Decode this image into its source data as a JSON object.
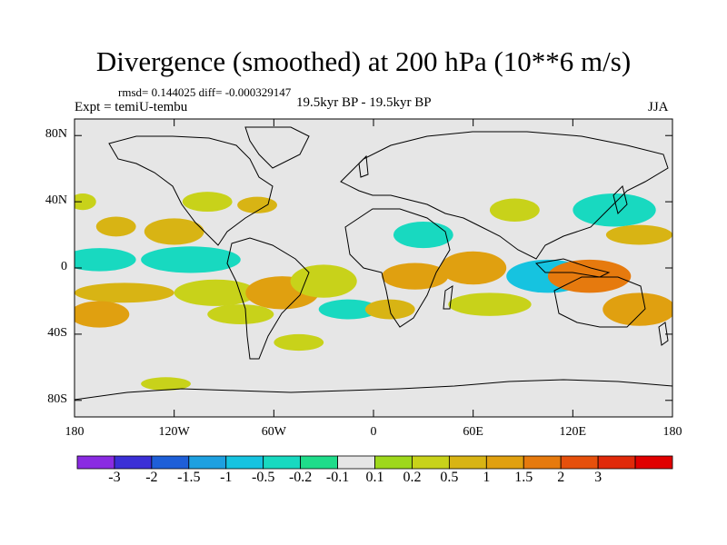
{
  "title": "Divergence (smoothed) at 200 hPa (10**6 m/s)",
  "stats": "rmsd= 0.144025 diff= -0.000329147",
  "experiment": "Expt = temiU-tembu",
  "period": "19.5kyr BP - 19.5kyr BP",
  "season": "JJA",
  "map": {
    "lon_range": [
      -180,
      180
    ],
    "lat_range": [
      -90,
      90
    ],
    "y_ticks": [
      {
        "label": "80N",
        "lat": 80
      },
      {
        "label": "40N",
        "lat": 40
      },
      {
        "label": "0",
        "lat": 0
      },
      {
        "label": "40S",
        "lat": -40
      },
      {
        "label": "80S",
        "lat": -80
      }
    ],
    "x_ticks": [
      {
        "label": "180",
        "lon": -180
      },
      {
        "label": "120W",
        "lon": -120
      },
      {
        "label": "60W",
        "lon": -60
      },
      {
        "label": "0",
        "lon": 0
      },
      {
        "label": "60E",
        "lon": 60
      },
      {
        "label": "120E",
        "lon": 120
      },
      {
        "label": "180",
        "lon": 180
      }
    ],
    "background_color": "#e6e6e6"
  },
  "colorbar": {
    "colors": [
      "#8a2be2",
      "#3b2fd6",
      "#1e5fd8",
      "#1ea0e0",
      "#16c3e0",
      "#18d9c0",
      "#1fdc8a",
      "#e6e6e6",
      "#9ed81c",
      "#c8d21a",
      "#d8b414",
      "#e0a010",
      "#e67a0e",
      "#e6500c",
      "#e02a0a",
      "#e00000"
    ],
    "labels": [
      "-3",
      "-2",
      "-1.5",
      "-1",
      "-0.5",
      "-0.2",
      "-0.1",
      "0.1",
      "0.2",
      "0.5",
      "1",
      "1.5",
      "2",
      "3"
    ]
  },
  "field_regions": [
    {
      "lon": -155,
      "lat": 25,
      "rx": 12,
      "ry": 6,
      "value": 0.5
    },
    {
      "lon": -165,
      "lat": 5,
      "rx": 22,
      "ry": 7,
      "value": -0.5
    },
    {
      "lon": -150,
      "lat": -15,
      "rx": 30,
      "ry": 6,
      "value": 0.5
    },
    {
      "lon": -165,
      "lat": -28,
      "rx": 18,
      "ry": 8,
      "value": 1
    },
    {
      "lon": -120,
      "lat": 22,
      "rx": 18,
      "ry": 8,
      "value": 0.5
    },
    {
      "lon": -110,
      "lat": 5,
      "rx": 30,
      "ry": 8,
      "value": -0.5
    },
    {
      "lon": -95,
      "lat": -15,
      "rx": 25,
      "ry": 8,
      "value": 0.2
    },
    {
      "lon": -55,
      "lat": -15,
      "rx": 22,
      "ry": 10,
      "value": 1
    },
    {
      "lon": -80,
      "lat": -28,
      "rx": 20,
      "ry": 6,
      "value": 0.2
    },
    {
      "lon": -30,
      "lat": -8,
      "rx": 20,
      "ry": 10,
      "value": 0.2
    },
    {
      "lon": -15,
      "lat": -25,
      "rx": 18,
      "ry": 6,
      "value": -0.5
    },
    {
      "lon": 25,
      "lat": -5,
      "rx": 20,
      "ry": 8,
      "value": 1
    },
    {
      "lon": 10,
      "lat": -25,
      "rx": 15,
      "ry": 6,
      "value": 0.5
    },
    {
      "lon": 60,
      "lat": 0,
      "rx": 20,
      "ry": 10,
      "value": 1
    },
    {
      "lon": 70,
      "lat": -22,
      "rx": 25,
      "ry": 7,
      "value": 0.2
    },
    {
      "lon": 105,
      "lat": -5,
      "rx": 25,
      "ry": 10,
      "value": -1
    },
    {
      "lon": 130,
      "lat": -5,
      "rx": 25,
      "ry": 10,
      "value": 1.5
    },
    {
      "lon": 160,
      "lat": -25,
      "rx": 22,
      "ry": 10,
      "value": 1
    },
    {
      "lon": 145,
      "lat": 35,
      "rx": 25,
      "ry": 10,
      "value": -0.5
    },
    {
      "lon": 160,
      "lat": 20,
      "rx": 20,
      "ry": 6,
      "value": 0.5
    },
    {
      "lon": 85,
      "lat": 35,
      "rx": 15,
      "ry": 7,
      "value": 0.2
    },
    {
      "lon": 30,
      "lat": 20,
      "rx": 18,
      "ry": 8,
      "value": -0.5
    },
    {
      "lon": -45,
      "lat": -45,
      "rx": 15,
      "ry": 5,
      "value": 0.2
    },
    {
      "lon": -100,
      "lat": 40,
      "rx": 15,
      "ry": 6,
      "value": 0.2
    },
    {
      "lon": -70,
      "lat": 38,
      "rx": 12,
      "ry": 5,
      "value": 0.5
    },
    {
      "lon": -125,
      "lat": -70,
      "rx": 15,
      "ry": 4,
      "value": 0.2
    },
    {
      "lon": -175,
      "lat": 40,
      "rx": 8,
      "ry": 5,
      "value": 0.2
    }
  ]
}
